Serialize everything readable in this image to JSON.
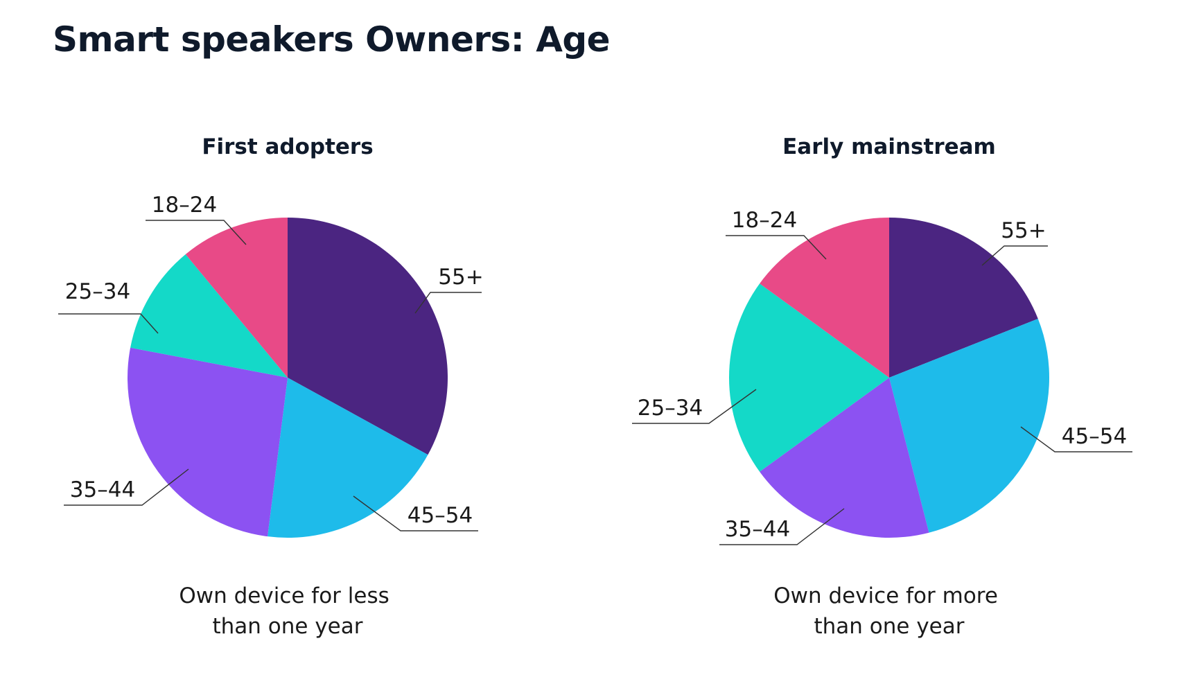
{
  "title": "Smart speakers Owners: Age",
  "chart_data": [
    {
      "type": "pie",
      "title": "First adopters",
      "caption": [
        "Own device for less",
        "than one year"
      ],
      "slices": [
        {
          "label": "55+",
          "value": 33,
          "color": "#4b2581"
        },
        {
          "label": "45–54",
          "value": 19,
          "color": "#1ebbea"
        },
        {
          "label": "35–44",
          "value": 26,
          "color": "#8c52f2"
        },
        {
          "label": "25–34",
          "value": 11,
          "color": "#14d9c8"
        },
        {
          "label": "18–24",
          "value": 11,
          "color": "#e84a87"
        }
      ]
    },
    {
      "type": "pie",
      "title": "Early mainstream",
      "caption": [
        "Own device for more",
        "than one year"
      ],
      "slices": [
        {
          "label": "55+",
          "value": 19,
          "color": "#4b2581"
        },
        {
          "label": "45–54",
          "value": 27,
          "color": "#1ebbea"
        },
        {
          "label": "35–44",
          "value": 19,
          "color": "#8c52f2"
        },
        {
          "label": "25–34",
          "value": 20,
          "color": "#14d9c8"
        },
        {
          "label": "18–24",
          "value": 15,
          "color": "#e84a87"
        }
      ]
    }
  ]
}
